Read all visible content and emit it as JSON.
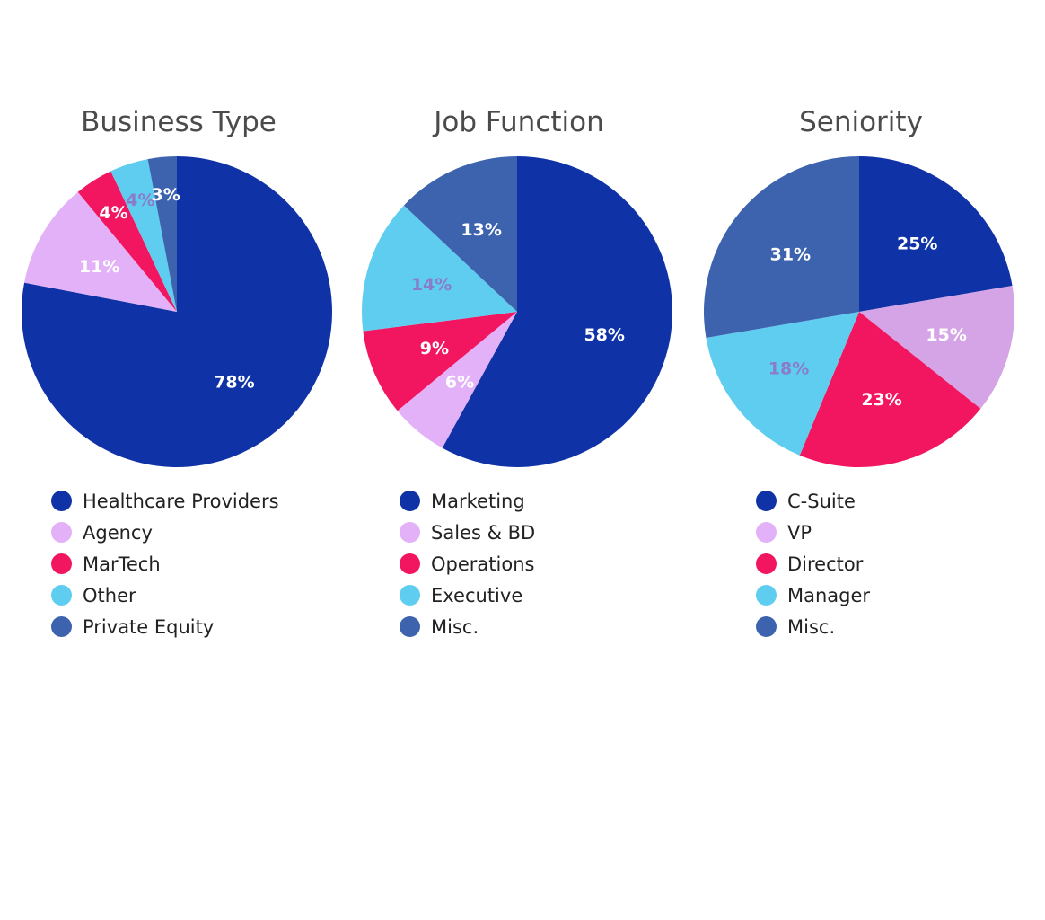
{
  "chart_data": [
    {
      "type": "pie",
      "title": "Business Type",
      "categories": [
        "Healthcare Providers",
        "Agency",
        "MarTech",
        "Other",
        "Private Equity"
      ],
      "values": [
        78,
        11,
        4,
        4,
        3
      ],
      "labels": [
        "78%",
        "11%",
        "4%",
        "4%",
        "3%"
      ],
      "colors": [
        "#0f33a6",
        "#e3b1f7",
        "#f1165f",
        "#5fcdf0",
        "#3d63ae"
      ],
      "label_colors": [
        "#ffffff",
        "#ffffff",
        "#ffffff",
        "#8a7dc8",
        "#ffffff"
      ],
      "legend_position": "bottom"
    },
    {
      "type": "pie",
      "title": "Job Function",
      "categories": [
        "Marketing",
        "Sales & BD",
        "Operations",
        "Executive",
        "Misc."
      ],
      "values": [
        58,
        6,
        9,
        14,
        13
      ],
      "labels": [
        "58%",
        "6%",
        "9%",
        "14%",
        "13%"
      ],
      "colors": [
        "#0f33a6",
        "#e3b1f7",
        "#f1165f",
        "#5fcdf0",
        "#3d63ae"
      ],
      "label_colors": [
        "#ffffff",
        "#ffffff",
        "#ffffff",
        "#8a7dc8",
        "#ffffff"
      ],
      "legend_position": "bottom"
    },
    {
      "type": "pie",
      "title": "Seniority",
      "categories": [
        "C-Suite",
        "VP",
        "Director",
        "Manager",
        "Misc."
      ],
      "values": [
        25,
        15,
        23,
        18,
        31
      ],
      "labels": [
        "25%",
        "15%",
        "23%",
        "18%",
        "31%"
      ],
      "colors": [
        "#0f33a6",
        "#d4a4e6",
        "#f1165f",
        "#5fcdf0",
        "#3d63ae"
      ],
      "legend_colors": [
        "#0f33a6",
        "#e3b1f7",
        "#f1165f",
        "#5fcdf0",
        "#3d63ae"
      ],
      "label_colors": [
        "#ffffff",
        "#ffffff",
        "#ffffff",
        "#8a7dc8",
        "#ffffff"
      ],
      "legend_position": "bottom"
    }
  ]
}
